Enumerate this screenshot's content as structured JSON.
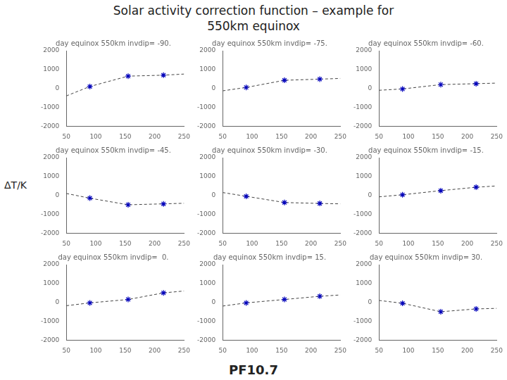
{
  "title": [
    "Solar activity correction function – example for",
    "550km equinox"
  ],
  "xlabel": "PF10.7",
  "ylabel": "ΔT/K",
  "chart_data": [
    {
      "type": "line",
      "title": "day equinox 550km invdip= -90.",
      "xlim": [
        50,
        250
      ],
      "ylim": [
        -2000,
        2000
      ],
      "xticks": [
        50,
        100,
        150,
        200,
        250
      ],
      "yticks": [
        -2000,
        -1000,
        0,
        1000,
        2000
      ],
      "grid": false,
      "series": [
        {
          "type": "line",
          "line_style": "dashed",
          "color": "#444444",
          "x": [
            50,
            90,
            155,
            215,
            250
          ],
          "values": [
            -400,
            100,
            650,
            700,
            760
          ]
        },
        {
          "type": "scatter",
          "marker": "star",
          "color": "#0000bb",
          "x": [
            90,
            155,
            215
          ],
          "values": [
            100,
            650,
            700
          ]
        }
      ]
    },
    {
      "type": "line",
      "title": "day equinox 550km invdip= -75.",
      "xlim": [
        50,
        250
      ],
      "ylim": [
        -2000,
        2000
      ],
      "xticks": [
        50,
        100,
        150,
        200,
        250
      ],
      "yticks": [
        -2000,
        -1000,
        0,
        1000,
        2000
      ],
      "grid": false,
      "series": [
        {
          "type": "line",
          "line_style": "dashed",
          "color": "#444444",
          "x": [
            50,
            90,
            155,
            215,
            250
          ],
          "values": [
            -130,
            50,
            430,
            490,
            530
          ]
        },
        {
          "type": "scatter",
          "marker": "star",
          "color": "#0000bb",
          "x": [
            90,
            155,
            215
          ],
          "values": [
            50,
            430,
            490
          ]
        }
      ]
    },
    {
      "type": "line",
      "title": "day equinox 550km invdip= -60.",
      "xlim": [
        50,
        250
      ],
      "ylim": [
        -2000,
        2000
      ],
      "xticks": [
        50,
        100,
        150,
        200,
        250
      ],
      "yticks": [
        -2000,
        -1000,
        0,
        1000,
        2000
      ],
      "grid": false,
      "series": [
        {
          "type": "line",
          "line_style": "dashed",
          "color": "#444444",
          "x": [
            50,
            90,
            155,
            215,
            250
          ],
          "values": [
            -100,
            -30,
            200,
            250,
            280
          ]
        },
        {
          "type": "scatter",
          "marker": "star",
          "color": "#0000bb",
          "x": [
            90,
            155,
            215
          ],
          "values": [
            -30,
            200,
            250
          ]
        }
      ]
    },
    {
      "type": "line",
      "title": "day equinox 550km invdip= -45.",
      "xlim": [
        50,
        250
      ],
      "ylim": [
        -2000,
        2000
      ],
      "xticks": [
        50,
        100,
        150,
        200,
        250
      ],
      "yticks": [
        -2000,
        -1000,
        0,
        1000,
        2000
      ],
      "grid": false,
      "series": [
        {
          "type": "line",
          "line_style": "dashed",
          "color": "#444444",
          "x": [
            50,
            90,
            155,
            215,
            250
          ],
          "values": [
            100,
            -150,
            -500,
            -450,
            -420
          ]
        },
        {
          "type": "scatter",
          "marker": "star",
          "color": "#0000bb",
          "x": [
            90,
            155,
            215
          ],
          "values": [
            -150,
            -500,
            -450
          ]
        }
      ]
    },
    {
      "type": "line",
      "title": "day equinox 550km invdip= -30.",
      "xlim": [
        50,
        250
      ],
      "ylim": [
        -2000,
        2000
      ],
      "xticks": [
        50,
        100,
        150,
        200,
        250
      ],
      "yticks": [
        -2000,
        -1000,
        0,
        1000,
        2000
      ],
      "grid": false,
      "series": [
        {
          "type": "line",
          "line_style": "dashed",
          "color": "#444444",
          "x": [
            50,
            90,
            155,
            215,
            250
          ],
          "values": [
            150,
            -50,
            -380,
            -430,
            -450
          ]
        },
        {
          "type": "scatter",
          "marker": "star",
          "color": "#0000bb",
          "x": [
            90,
            155,
            215
          ],
          "values": [
            -50,
            -380,
            -430
          ]
        }
      ]
    },
    {
      "type": "line",
      "title": "day equinox 550km invdip= -15.",
      "xlim": [
        50,
        250
      ],
      "ylim": [
        -2000,
        2000
      ],
      "xticks": [
        50,
        100,
        150,
        200,
        250
      ],
      "yticks": [
        -2000,
        -1000,
        0,
        1000,
        2000
      ],
      "grid": false,
      "series": [
        {
          "type": "line",
          "line_style": "dashed",
          "color": "#444444",
          "x": [
            50,
            90,
            155,
            215,
            250
          ],
          "values": [
            -80,
            30,
            250,
            430,
            500
          ]
        },
        {
          "type": "scatter",
          "marker": "star",
          "color": "#0000bb",
          "x": [
            90,
            155,
            215
          ],
          "values": [
            30,
            250,
            430
          ]
        }
      ]
    },
    {
      "type": "line",
      "title": "day equinox 550km invdip=  0.",
      "xlim": [
        50,
        250
      ],
      "ylim": [
        -2000,
        2000
      ],
      "xticks": [
        50,
        100,
        150,
        200,
        250
      ],
      "yticks": [
        -2000,
        -1000,
        0,
        1000,
        2000
      ],
      "grid": false,
      "series": [
        {
          "type": "line",
          "line_style": "dashed",
          "color": "#444444",
          "x": [
            50,
            90,
            155,
            215,
            250
          ],
          "values": [
            -180,
            -30,
            150,
            500,
            600
          ]
        },
        {
          "type": "scatter",
          "marker": "star",
          "color": "#0000bb",
          "x": [
            90,
            155,
            215
          ],
          "values": [
            -30,
            150,
            500
          ]
        }
      ]
    },
    {
      "type": "line",
      "title": "day equinox 550km invdip= 15.",
      "xlim": [
        50,
        250
      ],
      "ylim": [
        -2000,
        2000
      ],
      "xticks": [
        50,
        100,
        150,
        200,
        250
      ],
      "yticks": [
        -2000,
        -1000,
        0,
        1000,
        2000
      ],
      "grid": false,
      "series": [
        {
          "type": "line",
          "line_style": "dashed",
          "color": "#444444",
          "x": [
            50,
            90,
            155,
            215,
            250
          ],
          "values": [
            -200,
            -30,
            150,
            320,
            390
          ]
        },
        {
          "type": "scatter",
          "marker": "star",
          "color": "#0000bb",
          "x": [
            90,
            155,
            215
          ],
          "values": [
            -30,
            150,
            320
          ]
        }
      ]
    },
    {
      "type": "line",
      "title": "day equinox 550km invdip= 30.",
      "xlim": [
        50,
        250
      ],
      "ylim": [
        -2000,
        2000
      ],
      "xticks": [
        50,
        100,
        150,
        200,
        250
      ],
      "yticks": [
        -2000,
        -1000,
        0,
        1000,
        2000
      ],
      "grid": false,
      "series": [
        {
          "type": "line",
          "line_style": "dashed",
          "color": "#444444",
          "x": [
            50,
            90,
            155,
            215,
            250
          ],
          "values": [
            100,
            -50,
            -500,
            -350,
            -320
          ]
        },
        {
          "type": "scatter",
          "marker": "star",
          "color": "#0000bb",
          "x": [
            90,
            155,
            215
          ],
          "values": [
            -50,
            -500,
            -350
          ]
        }
      ]
    }
  ]
}
